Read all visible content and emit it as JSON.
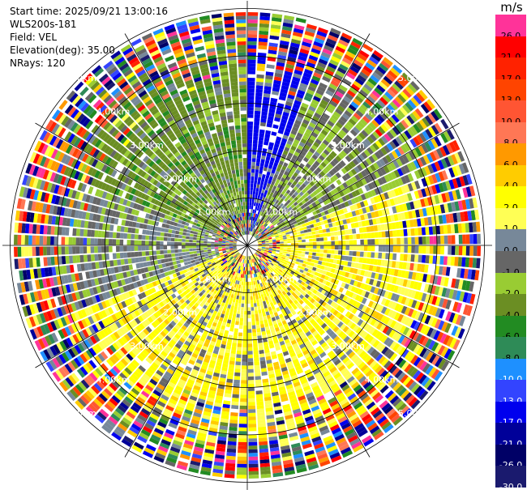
{
  "header": {
    "start_time": "Start time: 2025/09/21 13:00:16",
    "device": "WLS200s-181",
    "field": "Field: VEL",
    "elevation": "Elevation(deg): 35.00",
    "nrays": "NRays: 120"
  },
  "colorbar": {
    "unit": "m/s",
    "bins": [
      {
        "label": "26.0",
        "color": "#ff3399"
      },
      {
        "label": "21.0",
        "color": "#ff0000"
      },
      {
        "label": "17.0",
        "color": "#ff2200"
      },
      {
        "label": "13.0",
        "color": "#ff4400"
      },
      {
        "label": "10.0",
        "color": "#ff5533"
      },
      {
        "label": "8.0",
        "color": "#ff7755"
      },
      {
        "label": "6.0",
        "color": "#ff9900"
      },
      {
        "label": "4.0",
        "color": "#ffcc00"
      },
      {
        "label": "2.0",
        "color": "#ffff00"
      },
      {
        "label": "1.0",
        "color": "#ffff55"
      },
      {
        "label": "0.0",
        "color": "#778899"
      },
      {
        "label": "-1.0",
        "color": "#666666"
      },
      {
        "label": "-2.0",
        "color": "#99cc33"
      },
      {
        "label": "-4.0",
        "color": "#6b8e23"
      },
      {
        "label": "-6.0",
        "color": "#228b22"
      },
      {
        "label": "-8.0",
        "color": "#2e8b57"
      },
      {
        "label": "-10.0",
        "color": "#1e90ff"
      },
      {
        "label": "-13.0",
        "color": "#3344ff"
      },
      {
        "label": "-17.0",
        "color": "#0000ee"
      },
      {
        "label": "-21.0",
        "color": "#000099"
      },
      {
        "label": "-26.0",
        "color": "#000066"
      },
      {
        "label": "-30.0",
        "color": "#1a1a6e"
      }
    ]
  },
  "chart_data": {
    "type": "heatmap",
    "field": "VEL",
    "units": "m/s",
    "elevation_deg": 35.0,
    "nrays": 120,
    "range_rings_km": [
      1.0,
      2.0,
      3.0,
      4.0,
      5.0
    ],
    "ring_labels": [
      "1.00km",
      "2.00km",
      "3.00km",
      "4.00km",
      "5.00km"
    ],
    "max_range_km": 6.4,
    "sectors": [
      {
        "azimuth_deg": [
          0,
          20
        ],
        "dominant_velocity_ms": -17,
        "note": "blue band near north"
      },
      {
        "azimuth_deg": [
          20,
          70
        ],
        "dominant_velocity_ms": -2
      },
      {
        "azimuth_deg": [
          70,
          110
        ],
        "dominant_velocity_ms": 2
      },
      {
        "azimuth_deg": [
          110,
          250
        ],
        "dominant_velocity_ms": 2
      },
      {
        "azimuth_deg": [
          250,
          290
        ],
        "dominant_velocity_ms": -1
      },
      {
        "azimuth_deg": [
          290,
          360
        ],
        "dominant_velocity_ms": -4
      }
    ]
  }
}
